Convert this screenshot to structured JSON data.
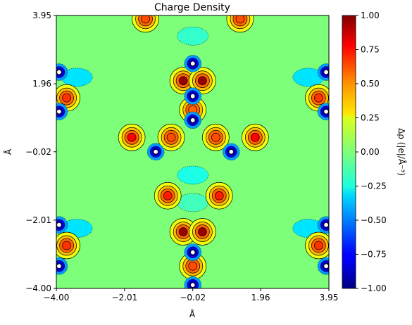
{
  "chart_data": {
    "type": "heatmap",
    "title": "Charge Density",
    "xlabel": "Å",
    "ylabel": "Å",
    "xlim": [
      -4.0,
      3.95
    ],
    "ylim": [
      -4.0,
      3.95
    ],
    "x_ticks": [
      "−4.00",
      "−2.01",
      "−0.02",
      "1.96",
      "3.95"
    ],
    "y_ticks": [
      "−4.00",
      "−2.01",
      "−0.02",
      "1.96",
      "3.95"
    ],
    "x_tick_values": [
      -4.0,
      -2.01,
      -0.02,
      1.96,
      3.95
    ],
    "y_tick_values": [
      -4.0,
      -2.01,
      -0.02,
      1.96,
      3.95
    ],
    "colorbar": {
      "label": "Δρ (|e|/Å⁻³)",
      "range": [
        -1.0,
        1.0
      ],
      "ticks": [
        "1.00",
        "0.75",
        "0.50",
        "0.25",
        "0.00",
        "−0.25",
        "−0.50",
        "−0.75",
        "−1.00"
      ],
      "tick_values": [
        1.0,
        0.75,
        0.5,
        0.25,
        0.0,
        -0.25,
        -0.5,
        -0.75,
        -1.0
      ],
      "colormap": "jet"
    },
    "grid": false,
    "features": [
      {
        "kind": "atom",
        "x": -0.02,
        "y": 0.9
      },
      {
        "kind": "atom",
        "x": -1.1,
        "y": -0.02
      },
      {
        "kind": "atom",
        "x": 1.1,
        "y": -0.02
      },
      {
        "kind": "atom",
        "x": -0.02,
        "y": 2.55
      },
      {
        "kind": "atom",
        "x": -0.02,
        "y": 1.6
      },
      {
        "kind": "atom",
        "x": -0.02,
        "y": -2.95
      },
      {
        "kind": "atom",
        "x": -0.02,
        "y": -3.9
      },
      {
        "kind": "atom",
        "x": -3.92,
        "y": 2.3
      },
      {
        "kind": "atom",
        "x": -3.92,
        "y": 1.15
      },
      {
        "kind": "atom",
        "x": 3.87,
        "y": 2.3
      },
      {
        "kind": "atom",
        "x": 3.87,
        "y": 1.15
      },
      {
        "kind": "atom",
        "x": -3.92,
        "y": -2.15
      },
      {
        "kind": "atom",
        "x": -3.92,
        "y": -3.35
      },
      {
        "kind": "atom",
        "x": 3.87,
        "y": -2.15
      },
      {
        "kind": "atom",
        "x": 3.87,
        "y": -3.35
      },
      {
        "kind": "lobe",
        "x": -1.8,
        "y": 0.4,
        "value": 0.75
      },
      {
        "kind": "lobe",
        "x": 1.8,
        "y": 0.4,
        "value": 0.75
      },
      {
        "kind": "lobe",
        "x": -0.75,
        "y": -1.3,
        "value": 0.7
      },
      {
        "kind": "lobe",
        "x": 0.75,
        "y": -1.3,
        "value": 0.7
      },
      {
        "kind": "lobe",
        "x": -0.65,
        "y": 0.4,
        "value": 0.6
      },
      {
        "kind": "lobe",
        "x": 0.65,
        "y": 0.4,
        "value": 0.6
      },
      {
        "kind": "lobe",
        "x": -0.02,
        "y": 1.2,
        "value": 0.55
      },
      {
        "kind": "lobe",
        "x": -0.3,
        "y": 2.05,
        "value": 0.95
      },
      {
        "kind": "lobe",
        "x": 0.26,
        "y": 2.05,
        "value": 0.95
      },
      {
        "kind": "lobe",
        "x": -0.3,
        "y": -2.35,
        "value": 0.95
      },
      {
        "kind": "lobe",
        "x": 0.26,
        "y": -2.35,
        "value": 0.95
      },
      {
        "kind": "lobe",
        "x": -0.02,
        "y": -3.35,
        "value": 0.6
      },
      {
        "kind": "lobe",
        "x": -1.4,
        "y": 3.85,
        "value": 0.6
      },
      {
        "kind": "lobe",
        "x": 1.36,
        "y": 3.85,
        "value": 0.6
      },
      {
        "kind": "lobe",
        "x": -3.7,
        "y": 1.55,
        "value": 0.65
      },
      {
        "kind": "lobe",
        "x": 3.65,
        "y": 1.55,
        "value": 0.65
      },
      {
        "kind": "lobe",
        "x": -3.7,
        "y": -2.75,
        "value": 0.65
      },
      {
        "kind": "lobe",
        "x": 3.65,
        "y": -2.75,
        "value": 0.65
      },
      {
        "kind": "depletion",
        "x": -3.4,
        "y": 2.15,
        "value": -0.3
      },
      {
        "kind": "depletion",
        "x": 3.35,
        "y": 2.15,
        "value": -0.3
      },
      {
        "kind": "depletion",
        "x": -3.4,
        "y": -2.25,
        "value": -0.3
      },
      {
        "kind": "depletion",
        "x": 3.35,
        "y": -2.25,
        "value": -0.3
      },
      {
        "kind": "depletion",
        "x": -0.02,
        "y": -0.7,
        "value": -0.2
      },
      {
        "kind": "depletion",
        "x": -0.02,
        "y": 3.35,
        "value": -0.15
      },
      {
        "kind": "depletion",
        "x": -0.02,
        "y": -1.5,
        "value": -0.12
      }
    ]
  }
}
